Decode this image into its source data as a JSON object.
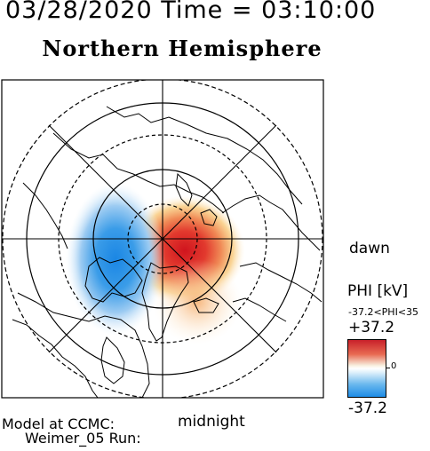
{
  "header": {
    "datetime": "03/28/2020 Time = 03:10:00"
  },
  "map": {
    "title": "Northern Hemisphere",
    "projection": "north-polar-stereographic",
    "labels": {
      "dawn": "dawn",
      "midnight": "midnight"
    },
    "features": [
      "coastline-outlines",
      "latitude-circles",
      "meridian-lines"
    ],
    "potential_field": {
      "positive_cell": {
        "center_side": "dawn",
        "color": "#d7262c"
      },
      "negative_cell": {
        "center_side": "dusk",
        "color": "#1f8fe8"
      }
    }
  },
  "colorbar": {
    "quantity": "PHI [kV]",
    "range_text": "-37.2<PHI<35",
    "max_label": "+37.2",
    "zero_label": "0",
    "min_label": "-37.2",
    "colors": {
      "high": "#c8202a",
      "mid": "#ffffff",
      "low": "#1e8ce6"
    }
  },
  "footer": {
    "model_line": "Model at CCMC:",
    "run_line": "Weimer_05 Run:"
  }
}
